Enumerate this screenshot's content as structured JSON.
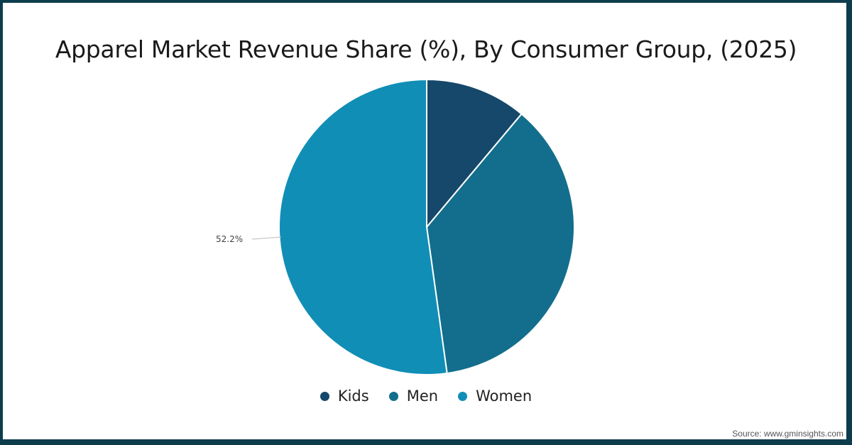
{
  "chart_data": {
    "type": "pie",
    "title": "Apparel Market Revenue Share (%), By Consumer Group, (2025)",
    "categories": [
      "Kids",
      "Men",
      "Women"
    ],
    "values": [
      11.1,
      36.7,
      52.2
    ],
    "colors": [
      "#15486a",
      "#126e8c",
      "#118eb6"
    ],
    "data_labels": [
      {
        "category": "Women",
        "text": "52.2%"
      }
    ],
    "legend_position": "bottom"
  },
  "title": "Apparel Market Revenue Share (%), By Consumer Group, (2025)",
  "labels": {
    "women": "52.2%"
  },
  "legend": [
    {
      "label": "Kids",
      "color": "#15486a"
    },
    {
      "label": "Men",
      "color": "#126e8c"
    },
    {
      "label": "Women",
      "color": "#118eb6"
    }
  ],
  "source": "Source: www.gminsights.com",
  "colors": {
    "border": "#0d3d4c",
    "background": "#ffffff"
  }
}
